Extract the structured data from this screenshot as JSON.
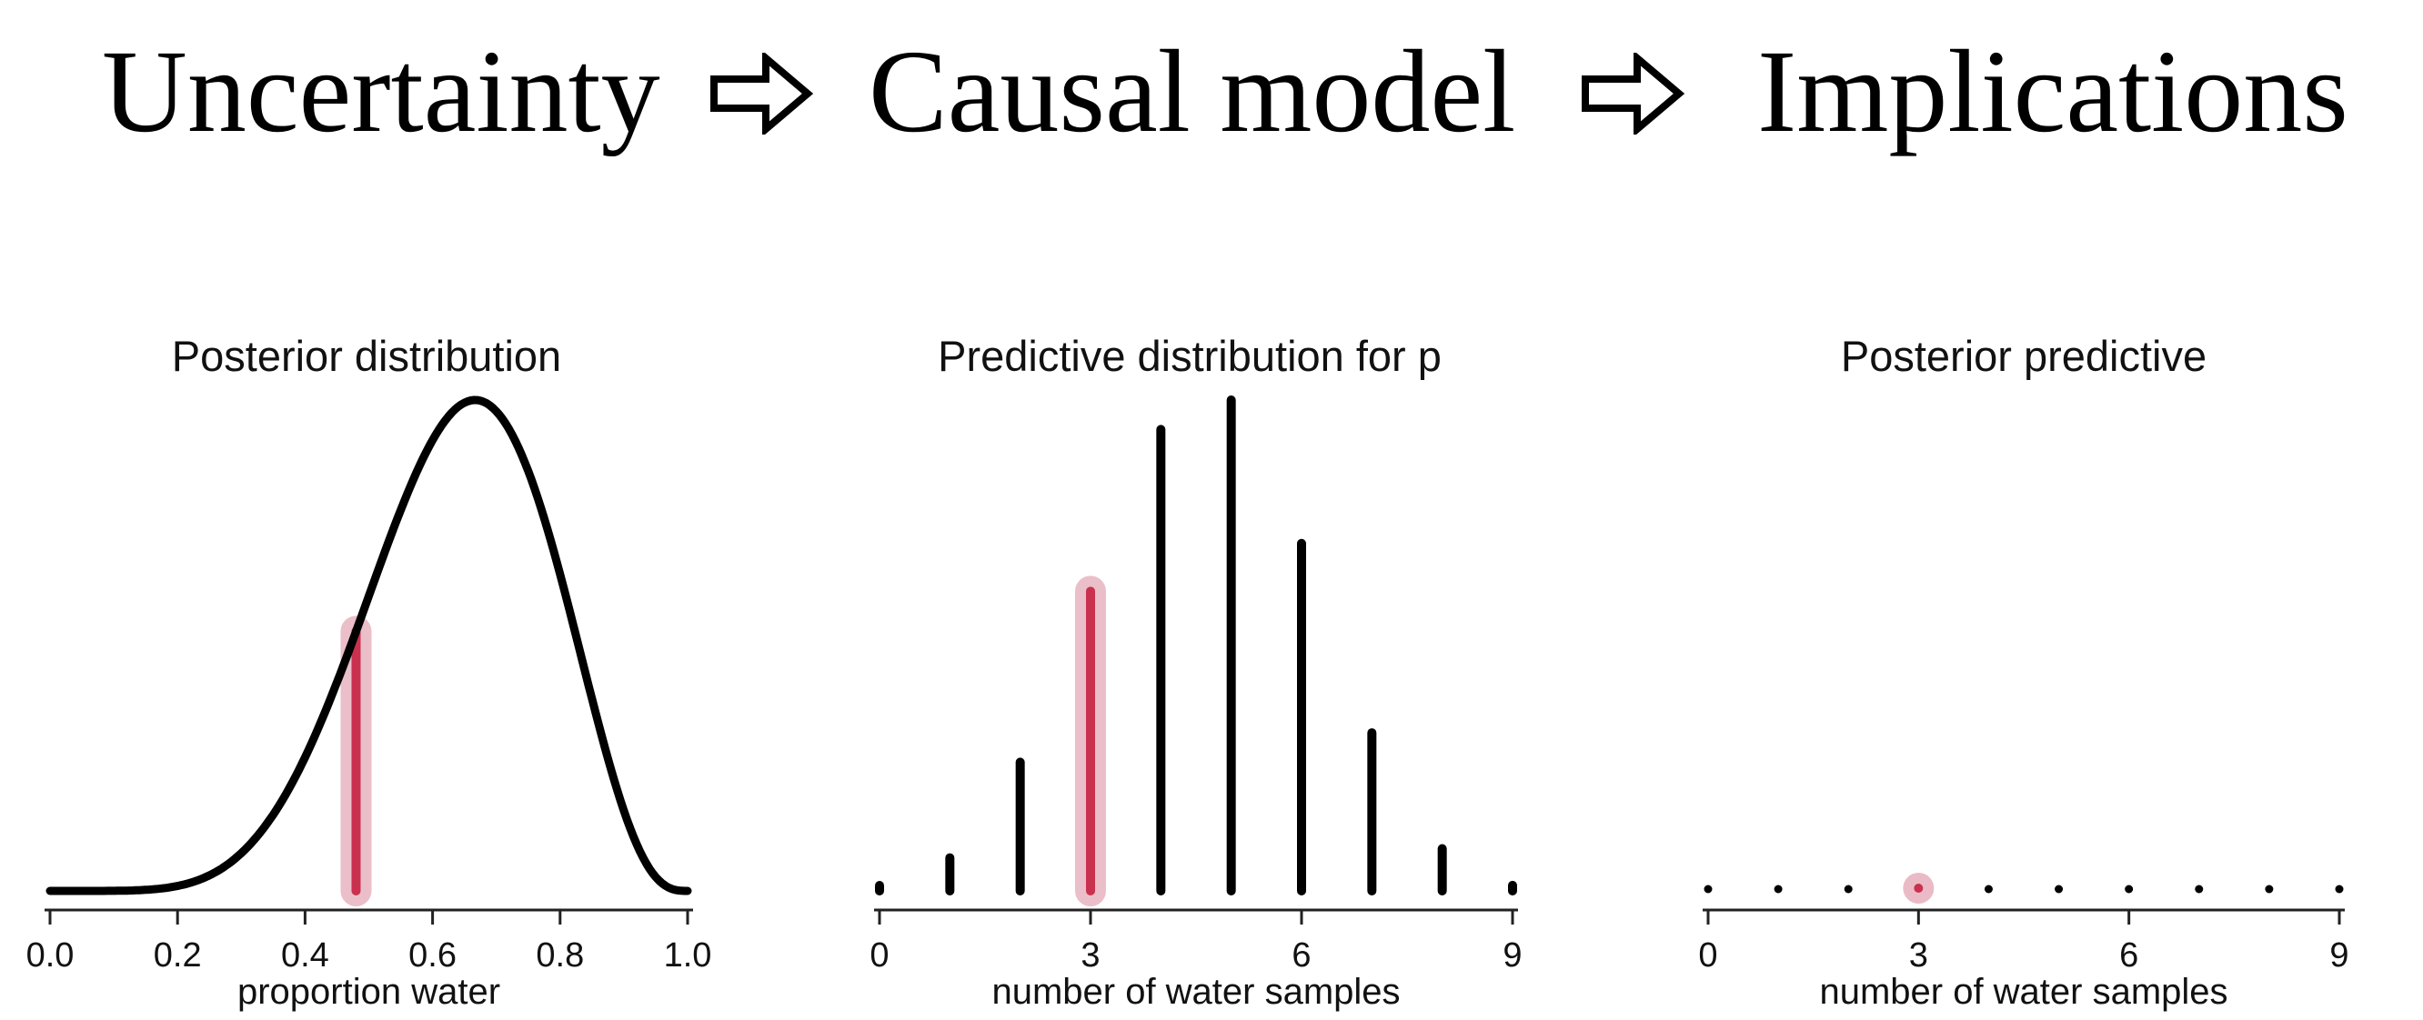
{
  "header": {
    "steps": [
      "Uncertainty",
      "Causal model",
      "Implications"
    ],
    "arrow_icon": "outline-right-arrow-icon"
  },
  "colors": {
    "line": "#000000",
    "highlight": "#c9314f",
    "highlight_band": "#e8b4c0"
  },
  "chart_data": [
    {
      "type": "line",
      "title": "Posterior distribution",
      "xlabel": "proportion water",
      "ylabel": "",
      "xlim": [
        0,
        1
      ],
      "xticks": [
        "0.0",
        "0.2",
        "0.4",
        "0.6",
        "0.8",
        "1.0"
      ],
      "curve": "density proportional to p^6 (1-p)^3",
      "x": [
        0.0,
        0.05,
        0.1,
        0.15,
        0.2,
        0.25,
        0.3,
        0.35,
        0.4,
        0.45,
        0.5,
        0.55,
        0.6,
        0.65,
        0.667,
        0.7,
        0.75,
        0.8,
        0.85,
        0.9,
        0.95,
        1.0
      ],
      "y": [
        0.0,
        0.0,
        0.003,
        0.011,
        0.031,
        0.068,
        0.124,
        0.2,
        0.293,
        0.397,
        0.501,
        0.597,
        0.673,
        0.718,
        0.724,
        0.716,
        0.656,
        0.533,
        0.359,
        0.172,
        0.038,
        0.0
      ],
      "highlight": {
        "x": 0.48
      }
    },
    {
      "type": "bar",
      "title": "Predictive distribution for p",
      "xlabel": "number of water samples",
      "ylabel": "",
      "xlim": [
        0,
        9
      ],
      "xticks": [
        "0",
        "3",
        "6",
        "9"
      ],
      "categories": [
        0,
        1,
        2,
        3,
        4,
        5,
        6,
        7,
        8,
        9
      ],
      "values": [
        0.002,
        0.018,
        0.07,
        0.163,
        0.251,
        0.267,
        0.189,
        0.086,
        0.023,
        0.003
      ],
      "highlight": {
        "x": 3
      }
    },
    {
      "type": "bar",
      "title": "Posterior predictive",
      "xlabel": "number of water samples",
      "ylabel": "",
      "xlim": [
        0,
        9
      ],
      "xticks": [
        "0",
        "3",
        "6",
        "9"
      ],
      "categories": [
        0,
        1,
        2,
        3,
        4,
        5,
        6,
        7,
        8,
        9
      ],
      "values": [
        0,
        0,
        0,
        0,
        0,
        0,
        0,
        0,
        0,
        0
      ],
      "highlight": {
        "x": 3
      }
    }
  ]
}
